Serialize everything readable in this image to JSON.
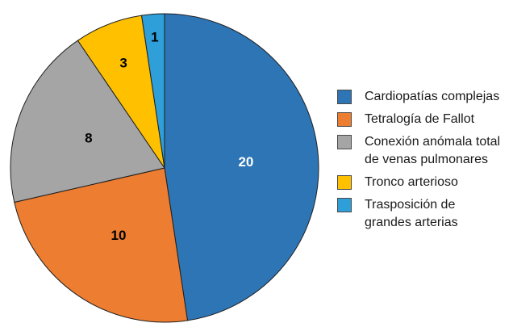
{
  "chart_data": {
    "type": "pie",
    "categories": [
      "Cardiopatías complejas",
      "Tetralogía de Fallot",
      "Conexión anómala total de venas pulmonares",
      "Tronco arterioso",
      "Trasposición de grandes arterias"
    ],
    "values": [
      20,
      10,
      8,
      3,
      1
    ],
    "data_labels": [
      "20",
      "10",
      "8",
      "3",
      "1"
    ],
    "colors": [
      "#2e75b6",
      "#ed7d31",
      "#a5a5a5",
      "#ffc000",
      "#2e9fd8"
    ],
    "label_colors": [
      "#ffffff",
      "#000000",
      "#000000",
      "#000000",
      "#000000"
    ],
    "start_angle_deg": 0,
    "direction": "clockwise",
    "legend_position": "right",
    "title": ""
  },
  "legend": {
    "items": [
      {
        "lines": [
          "Cardiopatías complejas"
        ]
      },
      {
        "lines": [
          "Tetralogía de Fallot"
        ]
      },
      {
        "lines": [
          "Conexión anómala total",
          "de venas pulmonares"
        ]
      },
      {
        "lines": [
          "Tronco arterioso"
        ]
      },
      {
        "lines": [
          "Trasposición de",
          "grandes arterias"
        ]
      }
    ]
  }
}
